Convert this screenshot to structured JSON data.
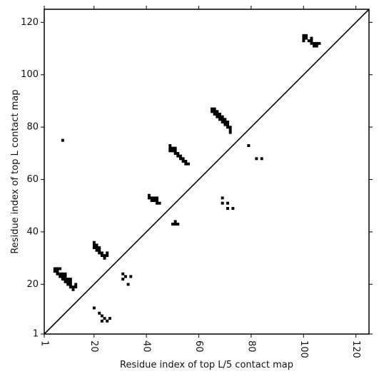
{
  "chart_data": {
    "type": "scatter",
    "title": "",
    "xlabel": "Residue index of top L/5 contact map",
    "ylabel": "Residue index of top L contact map",
    "xlim": [
      1,
      125
    ],
    "ylim": [
      1,
      125
    ],
    "x_ticks": [
      1,
      20,
      40,
      60,
      80,
      100,
      120
    ],
    "y_ticks": [
      1,
      20,
      40,
      60,
      80,
      100,
      120
    ],
    "x_tick_rotation": 90,
    "grid": false,
    "colors": {
      "marks": "#000000",
      "diagonal": "#000000",
      "frame": "#000000"
    },
    "diagonal": {
      "from": [
        1,
        1
      ],
      "to": [
        125,
        125
      ]
    },
    "series": [
      {
        "points": [
          [
            5,
            25
          ],
          [
            5,
            26
          ],
          [
            6,
            24
          ],
          [
            6,
            25
          ],
          [
            6,
            26
          ],
          [
            7,
            23
          ],
          [
            7,
            24
          ],
          [
            7,
            26
          ],
          [
            8,
            22
          ],
          [
            8,
            23
          ],
          [
            8,
            24
          ],
          [
            9,
            21
          ],
          [
            9,
            22
          ],
          [
            9,
            23
          ],
          [
            9,
            24
          ],
          [
            10,
            20
          ],
          [
            10,
            21
          ],
          [
            10,
            22
          ],
          [
            11,
            19
          ],
          [
            11,
            20
          ],
          [
            11,
            21
          ],
          [
            11,
            22
          ],
          [
            12,
            18
          ],
          [
            12,
            19
          ],
          [
            13,
            19
          ],
          [
            13,
            20
          ],
          [
            20,
            34
          ],
          [
            20,
            35
          ],
          [
            20,
            36
          ],
          [
            21,
            33
          ],
          [
            21,
            34
          ],
          [
            21,
            35
          ],
          [
            22,
            32
          ],
          [
            22,
            33
          ],
          [
            22,
            34
          ],
          [
            23,
            31
          ],
          [
            23,
            32
          ],
          [
            24,
            30
          ],
          [
            24,
            31
          ],
          [
            25,
            31
          ],
          [
            25,
            32
          ],
          [
            41,
            53
          ],
          [
            41,
            54
          ],
          [
            42,
            52
          ],
          [
            42,
            53
          ],
          [
            43,
            52
          ],
          [
            43,
            53
          ],
          [
            44,
            51
          ],
          [
            44,
            52
          ],
          [
            44,
            53
          ],
          [
            45,
            51
          ],
          [
            49,
            71
          ],
          [
            49,
            72
          ],
          [
            49,
            73
          ],
          [
            50,
            71
          ],
          [
            50,
            72
          ],
          [
            51,
            70
          ],
          [
            51,
            71
          ],
          [
            51,
            72
          ],
          [
            52,
            69
          ],
          [
            52,
            70
          ],
          [
            53,
            68
          ],
          [
            53,
            69
          ],
          [
            54,
            67
          ],
          [
            54,
            68
          ],
          [
            55,
            66
          ],
          [
            55,
            67
          ],
          [
            56,
            66
          ],
          [
            50,
            43
          ],
          [
            51,
            43
          ],
          [
            51,
            44
          ],
          [
            52,
            43
          ],
          [
            65,
            86
          ],
          [
            65,
            87
          ],
          [
            66,
            85
          ],
          [
            66,
            86
          ],
          [
            66,
            87
          ],
          [
            67,
            84
          ],
          [
            67,
            85
          ],
          [
            67,
            86
          ],
          [
            68,
            83
          ],
          [
            68,
            84
          ],
          [
            68,
            85
          ],
          [
            69,
            82
          ],
          [
            69,
            83
          ],
          [
            69,
            84
          ],
          [
            70,
            81
          ],
          [
            70,
            82
          ],
          [
            70,
            83
          ],
          [
            71,
            80
          ],
          [
            71,
            81
          ],
          [
            71,
            82
          ],
          [
            72,
            78
          ],
          [
            72,
            79
          ],
          [
            72,
            80
          ],
          [
            100,
            113
          ],
          [
            100,
            114
          ],
          [
            100,
            115
          ],
          [
            101,
            114
          ],
          [
            101,
            115
          ],
          [
            102,
            113
          ],
          [
            103,
            112
          ],
          [
            103,
            113
          ],
          [
            103,
            114
          ],
          [
            104,
            111
          ],
          [
            104,
            112
          ],
          [
            105,
            111
          ],
          [
            105,
            112
          ],
          [
            106,
            112
          ],
          [
            8,
            75
          ],
          [
            79,
            73
          ],
          [
            82,
            68
          ],
          [
            84,
            68
          ],
          [
            69,
            51
          ],
          [
            69,
            53
          ],
          [
            71,
            49
          ],
          [
            71,
            51
          ],
          [
            73,
            49
          ]
        ]
      },
      {
        "points": [
          [
            20,
            11
          ],
          [
            22,
            9
          ],
          [
            23,
            8
          ],
          [
            23,
            6
          ],
          [
            24,
            7
          ],
          [
            25,
            6
          ],
          [
            26,
            7
          ],
          [
            31,
            22
          ],
          [
            31,
            24
          ],
          [
            32,
            23
          ],
          [
            33,
            20
          ],
          [
            34,
            23
          ]
        ]
      }
    ]
  }
}
